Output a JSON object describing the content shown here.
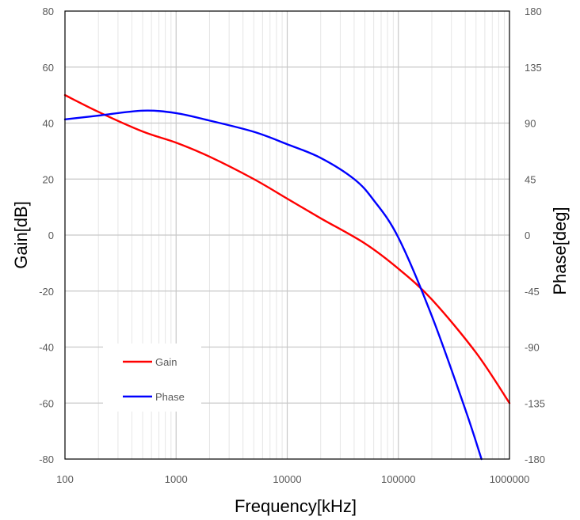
{
  "chart_data": {
    "type": "line",
    "xlabel": "Frequency[kHz]",
    "ylabel": "Gain[dB]",
    "y2label": "Phase[deg]",
    "x_scale": "log",
    "xlim": [
      100,
      1000000
    ],
    "ylim": [
      -80,
      80
    ],
    "y2lim": [
      -180,
      180
    ],
    "grid": true,
    "legend_position": "lower-left",
    "x_ticks": [
      "100",
      "1000",
      "10000",
      "100000",
      "1000000"
    ],
    "y_ticks": [
      "80",
      "60",
      "40",
      "20",
      "0",
      "-20",
      "-40",
      "-60",
      "-80"
    ],
    "y2_ticks": [
      "180",
      "135",
      "90",
      "45",
      "0",
      "-45",
      "-90",
      "-135",
      "-180"
    ],
    "series": [
      {
        "name": "Gain",
        "color": "#ff0000",
        "axis": "left",
        "x": [
          100,
          200,
          500,
          1000,
          2000,
          5000,
          10000,
          20000,
          50000,
          100000,
          200000,
          500000,
          1000000
        ],
        "y": [
          50,
          44,
          37,
          33,
          28,
          20,
          13,
          6,
          -3,
          -12,
          -23,
          -42,
          -60
        ]
      },
      {
        "name": "Phase",
        "color": "#0000ff",
        "axis": "right",
        "x": [
          100,
          200,
          500,
          1000,
          2000,
          5000,
          10000,
          20000,
          40000,
          60000,
          100000,
          200000,
          400000,
          560000
        ],
        "y": [
          93,
          96,
          100,
          98,
          92,
          83,
          73,
          62,
          45,
          28,
          -2,
          -65,
          -140,
          -180
        ]
      }
    ]
  }
}
